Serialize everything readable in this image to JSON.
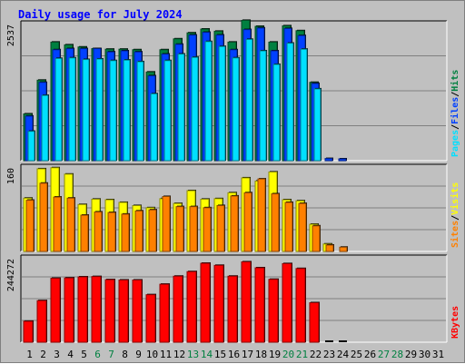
{
  "chart_data": {
    "type": "bar",
    "title": "Daily usage for July 2024",
    "colors": {
      "hits": "#008040",
      "files": "#0040ff",
      "pages": "#00e0ff",
      "visits": "#ffff00",
      "sites": "#ff8000",
      "kbytes": "#ff0000",
      "background": "#c0c0c0",
      "grid": "#808080",
      "weekend_label": "#008040"
    },
    "categories": [
      "1",
      "2",
      "3",
      "4",
      "5",
      "6",
      "7",
      "8",
      "9",
      "10",
      "11",
      "12",
      "13",
      "14",
      "15",
      "16",
      "17",
      "18",
      "19",
      "20",
      "21",
      "22",
      "23",
      "24",
      "25",
      "26",
      "27",
      "28",
      "29",
      "30",
      "31"
    ],
    "weekend_days": [
      "6",
      "7",
      "13",
      "14",
      "20",
      "21",
      "27",
      "28"
    ],
    "panels": [
      {
        "name": "hits-files-pages",
        "y_max_label": "2537",
        "ymax": 2537,
        "legend": [
          "Pages",
          "Files",
          "Hits"
        ],
        "series": [
          {
            "name": "Hits",
            "color": "#008040",
            "values": [
              860,
              1480,
              2180,
              2130,
              2090,
              2060,
              2050,
              2050,
              2040,
              1630,
              2040,
              2240,
              2350,
              2420,
              2380,
              2180,
              2580,
              2470,
              2180,
              2480,
              2390,
              1440,
              0,
              0,
              0,
              0,
              0,
              0,
              0,
              0,
              0
            ]
          },
          {
            "name": "Files",
            "color": "#0040ff",
            "values": [
              820,
              1440,
              2040,
              2060,
              2060,
              2060,
              2000,
              2020,
              2000,
              1560,
              1960,
              2140,
              2310,
              2360,
              2310,
              2040,
              2410,
              2440,
              2020,
              2430,
              2300,
              1420,
              40,
              20,
              0,
              0,
              0,
              0,
              0,
              0,
              0
            ]
          },
          {
            "name": "Pages",
            "color": "#00e0ff",
            "values": [
              540,
              1200,
              1880,
              1890,
              1860,
              1870,
              1840,
              1850,
              1820,
              1230,
              1840,
              1960,
              1900,
              2190,
              2100,
              1890,
              2230,
              2020,
              1770,
              2160,
              2050,
              1320,
              0,
              0,
              0,
              0,
              0,
              0,
              0,
              0,
              0
            ]
          }
        ]
      },
      {
        "name": "visits-sites",
        "y_max_label": "160",
        "ymax": 160,
        "legend": [
          "Sites",
          "Visits"
        ],
        "series": [
          {
            "name": "Visits",
            "color": "#ffff00",
            "values": [
              100,
              155,
              157,
              145,
              88,
              98,
              97,
              92,
              86,
              82,
              99,
              90,
              114,
              98,
              99,
              110,
              138,
              132,
              149,
              97,
              95,
              51,
              14,
              0,
              0,
              0,
              0,
              0,
              0,
              0,
              0
            ]
          },
          {
            "name": "Sites",
            "color": "#ff8000",
            "values": [
              96,
              128,
              102,
              100,
              68,
              74,
              73,
              70,
              76,
              78,
              103,
              84,
              84,
              82,
              86,
              104,
              110,
              136,
              108,
              92,
              90,
              48,
              12,
              8,
              0,
              0,
              0,
              0,
              0,
              0,
              0
            ]
          }
        ]
      },
      {
        "name": "kbytes",
        "y_max_label": "244272",
        "ymax": 244272,
        "legend": [
          "KBytes"
        ],
        "series": [
          {
            "name": "KBytes",
            "color": "#ff0000",
            "values": [
              60000,
              119000,
              183000,
              184000,
              187000,
              188000,
              179000,
              178000,
              178000,
              136000,
              166000,
              189000,
              202000,
              226000,
              220000,
              189000,
              230000,
              213000,
              180000,
              225000,
              211000,
              113000,
              0,
              0,
              0,
              0,
              0,
              0,
              0,
              0,
              0
            ]
          }
        ]
      }
    ],
    "legend_separator": "/",
    "grid": true
  }
}
